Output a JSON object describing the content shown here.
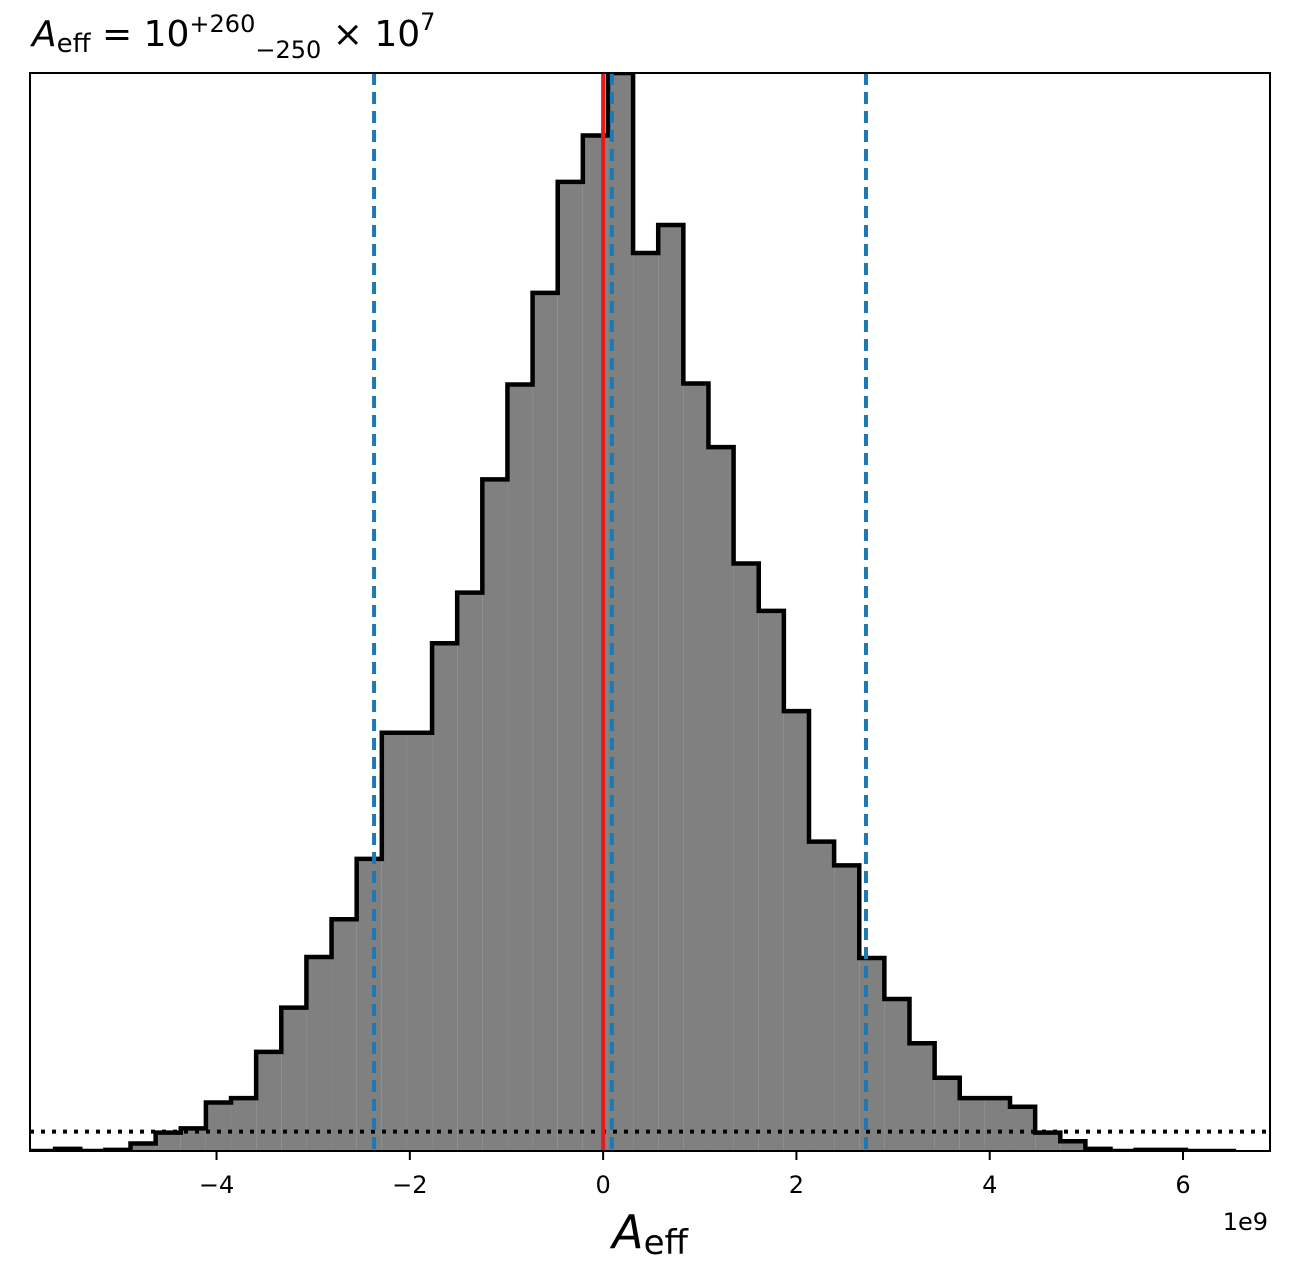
{
  "chart_data": {
    "type": "bar",
    "histogram": true,
    "title": {
      "symbol": "A",
      "symbol_sub": "eff",
      "equals": " = 10",
      "sup": "+260",
      "sub": "−250",
      "times": " × 10",
      "times_exp": "7"
    },
    "xlabel": {
      "symbol": "A",
      "sub": "eff"
    },
    "ylabel": "",
    "offset_text": "1e9",
    "x_scale": 1000000000,
    "xlim": [
      -5.93,
      6.9
    ],
    "ylim": [
      0,
      1.0
    ],
    "x_ticks": [
      -4,
      -2,
      0,
      2,
      4,
      6
    ],
    "x_tick_labels": [
      "−4",
      "−2",
      "0",
      "2",
      "4",
      "6"
    ],
    "y_ticks_visible": false,
    "grid": false,
    "bin_edges": [
      -5.93,
      -5.67,
      -5.41,
      -5.15,
      -4.89,
      -4.63,
      -4.37,
      -4.11,
      -3.85,
      -3.59,
      -3.33,
      -3.07,
      -2.81,
      -2.55,
      -2.29,
      -2.03,
      -1.77,
      -1.51,
      -1.25,
      -0.99,
      -0.73,
      -0.47,
      -0.21,
      0.05,
      0.31,
      0.57,
      0.83,
      1.09,
      1.35,
      1.61,
      1.87,
      2.13,
      2.39,
      2.65,
      2.91,
      3.17,
      3.43,
      3.69,
      3.95,
      4.21,
      4.47,
      4.73,
      4.99,
      5.25,
      5.51,
      5.77,
      6.03,
      6.29,
      6.55
    ],
    "counts": [
      0.0,
      0.002,
      0.0,
      0.001,
      0.007,
      0.017,
      0.021,
      0.045,
      0.049,
      0.092,
      0.133,
      0.18,
      0.215,
      0.271,
      0.388,
      0.388,
      0.471,
      0.518,
      0.623,
      0.711,
      0.796,
      0.899,
      0.942,
      1.0,
      0.833,
      0.859,
      0.712,
      0.653,
      0.545,
      0.501,
      0.408,
      0.287,
      0.265,
      0.179,
      0.141,
      0.1,
      0.068,
      0.049,
      0.049,
      0.041,
      0.017,
      0.009,
      0.002,
      0.0,
      0.001,
      0.001,
      0.0,
      0.0
    ],
    "hist_fill": "#808080",
    "hist_edge": "#000000",
    "vlines": [
      {
        "x": 0.0,
        "color": "#e41a1c",
        "style": "solid",
        "role": "truth"
      },
      {
        "x": 0.09,
        "color": "#1f77b4",
        "style": "dashed",
        "role": "median"
      },
      {
        "x": -2.37,
        "color": "#1f77b4",
        "style": "dashed",
        "role": "lower"
      },
      {
        "x": 2.72,
        "color": "#1f77b4",
        "style": "dashed",
        "role": "upper"
      }
    ],
    "prior_line": {
      "y": 0.018,
      "color": "#000000",
      "style": "dotted"
    }
  }
}
